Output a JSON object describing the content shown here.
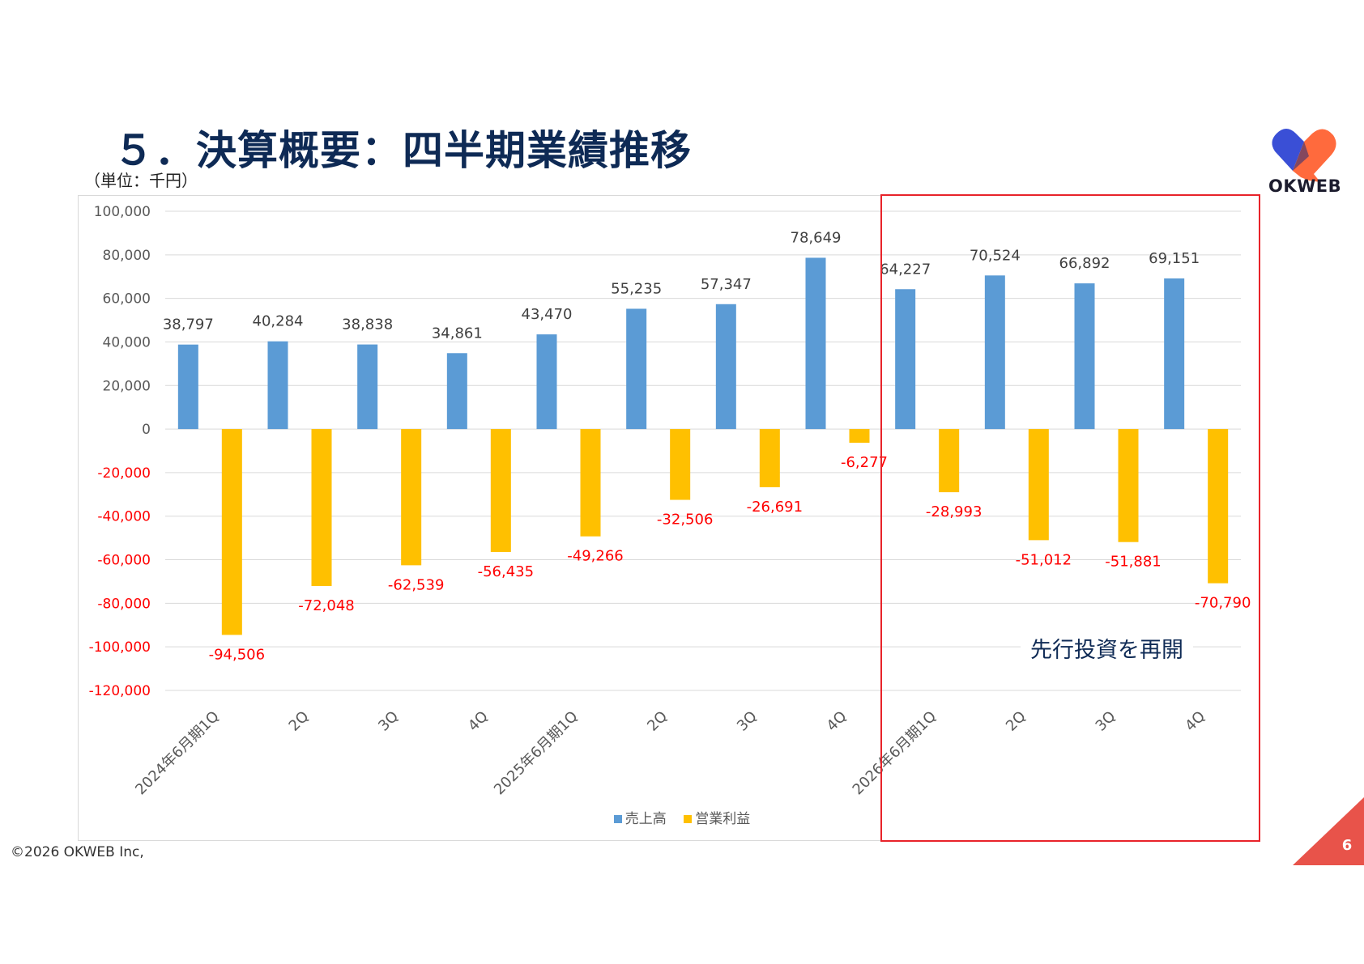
{
  "slide": {
    "title": "５．決算概要：四半期業績推移",
    "unit_label": "（単位：千円）",
    "logo_text": "OKWEB",
    "footer": "©2026 OKWEB Inc,",
    "page_number": "6",
    "annotation": "先行投資を再開",
    "colors": {
      "title": "#0e2a55",
      "teal_corner": "#00b4b4",
      "red_corner": "#e8534a",
      "highlight_border": "#e8232a"
    }
  },
  "chart_data": {
    "type": "bar",
    "categories": [
      "2024年6月期1Q",
      "2Q",
      "3Q",
      "4Q",
      "2025年6月期1Q",
      "2Q",
      "3Q",
      "4Q",
      "2026年6月期1Q",
      "2Q",
      "3Q",
      "4Q"
    ],
    "series": [
      {
        "name": "売上高",
        "color": "#5b9bd5",
        "values": [
          38797,
          40284,
          38838,
          34861,
          43470,
          55235,
          57347,
          78649,
          64227,
          70524,
          66892,
          69151
        ],
        "labels": [
          "38,797",
          "40,284",
          "38,838",
          "34,861",
          "43,470",
          "55,235",
          "57,347",
          "78,649",
          "64,227",
          "70,524",
          "66,892",
          "69,151"
        ]
      },
      {
        "name": "営業利益",
        "color": "#ffc000",
        "values": [
          -94506,
          -72048,
          -62539,
          -56435,
          -49266,
          -32506,
          -26691,
          -6277,
          -28993,
          -51012,
          -51881,
          -70790
        ],
        "labels": [
          "-94,506",
          "-72,048",
          "-62,539",
          "-56,435",
          "-49,266",
          "-32,506",
          "-26,691",
          "-6,277",
          "-28,993",
          "-51,012",
          "-51,881",
          "-70,790"
        ]
      }
    ],
    "y_ticks": [
      100000,
      80000,
      60000,
      40000,
      20000,
      0,
      -20000,
      -40000,
      -60000,
      -80000,
      -100000,
      -120000
    ],
    "y_tick_labels": [
      "100,000",
      "80,000",
      "60,000",
      "40,000",
      "20,000",
      "0",
      "-20,000",
      "-40,000",
      "-60,000",
      "-80,000",
      "-100,000",
      "-120,000"
    ],
    "ylim": [
      -120000,
      100000
    ],
    "grid": true,
    "legend_position": "bottom",
    "negative_label_color": "#ff0000",
    "highlight_range": [
      "2026年6月期1Q",
      "4Q"
    ]
  }
}
